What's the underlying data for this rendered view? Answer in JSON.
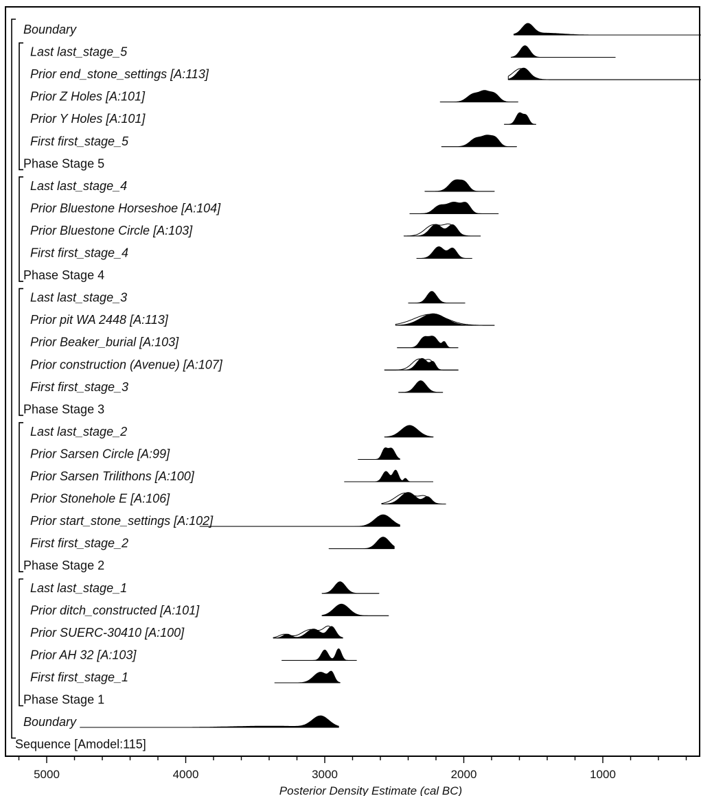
{
  "chart_data": {
    "type": "ridgeline",
    "xlabel": "Posterior Density Estimate (cal BC)",
    "xlim": [
      5300,
      210
    ],
    "x_ticks": [
      5000,
      4000,
      3000,
      2000,
      1000
    ],
    "x_minor_step": 200,
    "rows": [
      {
        "label": "Boundary",
        "kind": "boundary",
        "indent": 0,
        "range": [
          1640,
          210
        ],
        "peaks": [
          [
            1540,
            40,
            1.0
          ],
          [
            1420,
            130,
            0.18
          ]
        ],
        "fill": true
      },
      {
        "label": "Last last_stage_5",
        "kind": "item",
        "indent": 1,
        "range": [
          1660,
          910
        ],
        "peaks": [
          [
            1560,
            35,
            1.0
          ]
        ],
        "fill": true
      },
      {
        "label": "Prior end_stone_settings [A:113]",
        "kind": "item",
        "indent": 1,
        "range": [
          1680,
          210
        ],
        "peaks": [
          [
            1570,
            45,
            1.0
          ]
        ],
        "fill": true,
        "prior": true
      },
      {
        "label": "Prior Z Holes [A:101]",
        "kind": "item",
        "indent": 1,
        "range": [
          2170,
          1610
        ],
        "peaks": [
          [
            1930,
            45,
            0.9
          ],
          [
            1850,
            35,
            1.0
          ],
          [
            1780,
            35,
            0.9
          ]
        ],
        "fill": true
      },
      {
        "label": "Prior Y Holes [A:101]",
        "kind": "item",
        "indent": 1,
        "range": [
          1710,
          1480
        ],
        "peaks": [
          [
            1600,
            25,
            1.0
          ],
          [
            1550,
            20,
            0.7
          ]
        ],
        "fill": true
      },
      {
        "label": "First first_stage_5",
        "kind": "item",
        "indent": 1,
        "range": [
          2160,
          1620
        ],
        "peaks": [
          [
            1910,
            45,
            0.95
          ],
          [
            1830,
            35,
            1.0
          ],
          [
            1770,
            30,
            0.85
          ]
        ],
        "fill": true
      },
      {
        "label": "Phase Stage 5",
        "kind": "phase",
        "indent": 0
      },
      {
        "label": "Last last_stage_4",
        "kind": "item",
        "indent": 1,
        "range": [
          2280,
          1780
        ],
        "peaks": [
          [
            2060,
            45,
            1.0
          ],
          [
            1990,
            30,
            0.6
          ]
        ],
        "fill": true
      },
      {
        "label": "Prior Bluestone Horseshoe [A:104]",
        "kind": "item",
        "indent": 1,
        "range": [
          2390,
          1750
        ],
        "peaks": [
          [
            2180,
            40,
            0.6
          ],
          [
            2070,
            55,
            1.0
          ],
          [
            1980,
            30,
            0.7
          ]
        ],
        "fill": true
      },
      {
        "label": "Prior Bluestone Circle [A:103]",
        "kind": "item",
        "indent": 1,
        "range": [
          2430,
          1880
        ],
        "peaks": [
          [
            2200,
            45,
            1.0
          ],
          [
            2080,
            35,
            0.95
          ]
        ],
        "fill": true,
        "prior": true
      },
      {
        "label": "First first_stage_4",
        "kind": "item",
        "indent": 1,
        "range": [
          2340,
          1940
        ],
        "peaks": [
          [
            2180,
            40,
            1.0
          ],
          [
            2080,
            30,
            0.85
          ]
        ],
        "fill": true
      },
      {
        "label": "Phase Stage 4",
        "kind": "phase",
        "indent": 0
      },
      {
        "label": "Last last_stage_3",
        "kind": "item",
        "indent": 1,
        "range": [
          2400,
          1990
        ],
        "peaks": [
          [
            2230,
            35,
            1.0
          ]
        ],
        "fill": true
      },
      {
        "label": "Prior pit WA 2448 [A:113]",
        "kind": "item",
        "indent": 1,
        "range": [
          2490,
          1780
        ],
        "peaks": [
          [
            2220,
            90,
            1.0
          ]
        ],
        "fill": true,
        "prior": true
      },
      {
        "label": "Prior Beaker_burial [A:103]",
        "kind": "item",
        "indent": 1,
        "range": [
          2480,
          2040
        ],
        "peaks": [
          [
            2290,
            30,
            0.85
          ],
          [
            2220,
            35,
            1.0
          ],
          [
            2140,
            15,
            0.5
          ]
        ],
        "fill": true
      },
      {
        "label": "Prior construction (Avenue) [A:107]",
        "kind": "item",
        "indent": 1,
        "range": [
          2570,
          2040
        ],
        "peaks": [
          [
            2300,
            40,
            1.0
          ],
          [
            2220,
            20,
            0.6
          ]
        ],
        "fill": true,
        "prior": true
      },
      {
        "label": "First first_stage_3",
        "kind": "item",
        "indent": 1,
        "range": [
          2470,
          2150
        ],
        "peaks": [
          [
            2310,
            40,
            1.0
          ]
        ],
        "fill": true
      },
      {
        "label": "Phase Stage 3",
        "kind": "phase",
        "indent": 0
      },
      {
        "label": "Last last_stage_2",
        "kind": "item",
        "indent": 1,
        "range": [
          2570,
          2220
        ],
        "peaks": [
          [
            2390,
            60,
            1.0
          ]
        ],
        "fill": true
      },
      {
        "label": "Prior Sarsen Circle [A:99]",
        "kind": "item",
        "indent": 1,
        "range": [
          2760,
          2460
        ],
        "peaks": [
          [
            2570,
            20,
            0.9
          ],
          [
            2520,
            25,
            1.0
          ]
        ],
        "fill": true
      },
      {
        "label": "Prior Sarsen Trilithons [A:100]",
        "kind": "item",
        "indent": 1,
        "range": [
          2860,
          2220
        ],
        "peaks": [
          [
            2560,
            25,
            0.9
          ],
          [
            2490,
            20,
            1.0
          ],
          [
            2420,
            12,
            0.3
          ]
        ],
        "fill": true
      },
      {
        "label": "Prior Stonehole E [A:106]",
        "kind": "item",
        "indent": 1,
        "range": [
          2590,
          2130
        ],
        "peaks": [
          [
            2400,
            55,
            1.0
          ],
          [
            2260,
            30,
            0.6
          ]
        ],
        "fill": true,
        "prior": true
      },
      {
        "label": "Prior start_stone_settings [A:102]",
        "kind": "item",
        "indent": 1,
        "range": [
          3900,
          2460
        ],
        "peaks": [
          [
            2580,
            60,
            1.0
          ]
        ],
        "fill": true
      },
      {
        "label": "First first_stage_2",
        "kind": "item",
        "indent": 1,
        "range": [
          2970,
          2500
        ],
        "peaks": [
          [
            2580,
            45,
            1.0
          ]
        ],
        "fill": true
      },
      {
        "label": "Phase Stage 2",
        "kind": "phase",
        "indent": 0
      },
      {
        "label": "Last last_stage_1",
        "kind": "item",
        "indent": 1,
        "range": [
          3020,
          2610
        ],
        "peaks": [
          [
            2890,
            40,
            1.0
          ]
        ],
        "fill": true
      },
      {
        "label": "Prior ditch_constructed [A:101]",
        "kind": "item",
        "indent": 1,
        "range": [
          3020,
          2540
        ],
        "peaks": [
          [
            2880,
            55,
            1.0
          ]
        ],
        "fill": true
      },
      {
        "label": "Prior SUERC-30410 [A:100]",
        "kind": "item",
        "indent": 1,
        "range": [
          3370,
          2870
        ],
        "peaks": [
          [
            3270,
            30,
            0.35
          ],
          [
            3080,
            50,
            0.8
          ],
          [
            2950,
            30,
            1.0
          ]
        ],
        "fill": true,
        "prior": true
      },
      {
        "label": "Prior AH 32 [A:103]",
        "kind": "item",
        "indent": 1,
        "range": [
          3310,
          2770
        ],
        "peaks": [
          [
            3000,
            25,
            0.9
          ],
          [
            2900,
            20,
            1.0
          ]
        ],
        "fill": true
      },
      {
        "label": "First first_stage_1",
        "kind": "item",
        "indent": 1,
        "range": [
          3360,
          2890
        ],
        "peaks": [
          [
            3030,
            50,
            1.0
          ],
          [
            2950,
            20,
            0.8
          ]
        ],
        "fill": true
      },
      {
        "label": "Phase Stage 1",
        "kind": "phase",
        "indent": 0
      },
      {
        "label": "Boundary",
        "kind": "boundary",
        "indent": 0,
        "range": [
          4760,
          2900
        ],
        "peaks": [
          [
            3030,
            60,
            1.0
          ],
          [
            3400,
            260,
            0.12
          ]
        ],
        "fill": true,
        "strike": true
      },
      {
        "label": "Sequence [Amodel:115]",
        "kind": "sequence",
        "indent": 0
      }
    ]
  }
}
